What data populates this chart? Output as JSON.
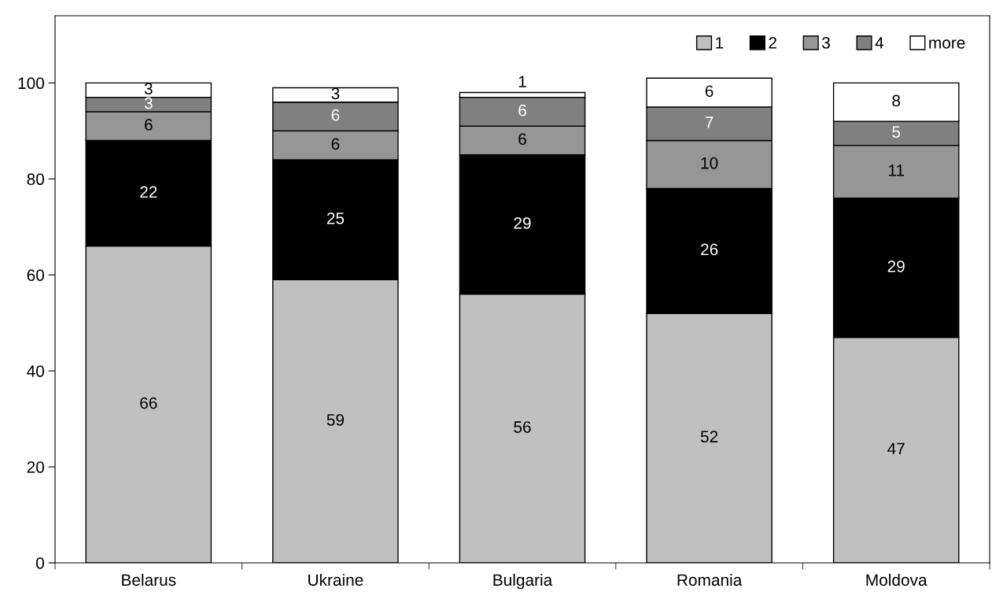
{
  "chart_data": {
    "type": "bar",
    "stacked": true,
    "categories": [
      "Belarus",
      "Ukraine",
      "Bulgaria",
      "Romania",
      "Moldova"
    ],
    "series": [
      {
        "name": "1",
        "color": "#c0c0c0",
        "values": [
          66,
          59,
          56,
          52,
          47
        ]
      },
      {
        "name": "2",
        "color": "#000000",
        "values": [
          22,
          25,
          29,
          26,
          29
        ]
      },
      {
        "name": "3",
        "color": "#969696",
        "values": [
          6,
          6,
          6,
          10,
          11
        ]
      },
      {
        "name": "4",
        "color": "#808080",
        "values": [
          3,
          6,
          6,
          7,
          5
        ]
      },
      {
        "name": "more",
        "color": "#ffffff",
        "values": [
          3,
          3,
          1,
          6,
          8
        ]
      }
    ],
    "ylim": [
      0,
      114
    ],
    "yticks": [
      0,
      20,
      40,
      60,
      80,
      100
    ],
    "grid": false,
    "legend": "top right",
    "data_labels": true
  }
}
